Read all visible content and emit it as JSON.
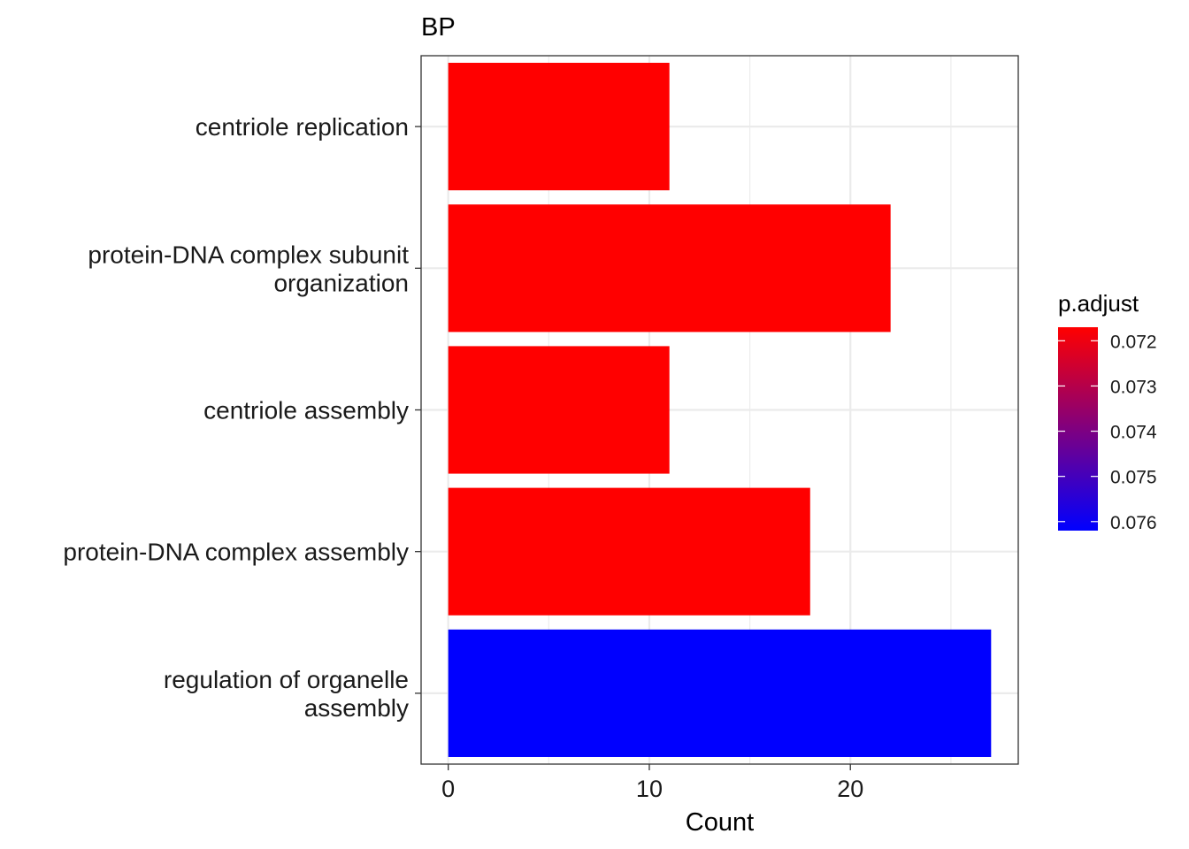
{
  "chart_data": {
    "type": "bar",
    "orientation": "horizontal",
    "title": "BP",
    "xlabel": "Count",
    "ylabel": "",
    "categories": [
      [
        "centriole replication"
      ],
      [
        "protein-DNA complex subunit",
        "organization"
      ],
      [
        "centriole assembly"
      ],
      [
        "protein-DNA complex assembly"
      ],
      [
        "regulation of organelle",
        "assembly"
      ]
    ],
    "values": [
      11,
      22,
      11,
      18,
      27
    ],
    "p_adjust": [
      0.0717,
      0.0717,
      0.0717,
      0.0717,
      0.0762
    ],
    "xlim": [
      -1.35,
      28.35
    ],
    "x_ticks": [
      0,
      10,
      20
    ],
    "x_minor_ticks": [
      5,
      15,
      25
    ],
    "grid": true,
    "legend": {
      "title": "p.adjust",
      "placement": "right",
      "ticks": [
        {
          "value": 0.072,
          "label": "0.072"
        },
        {
          "value": 0.073,
          "label": "0.073"
        },
        {
          "value": 0.074,
          "label": "0.074"
        },
        {
          "value": 0.075,
          "label": "0.075"
        },
        {
          "value": 0.076,
          "label": "0.076"
        }
      ],
      "range": [
        0.0717,
        0.0762
      ],
      "low_color": "#ff0000",
      "high_color": "#0000ff"
    }
  }
}
